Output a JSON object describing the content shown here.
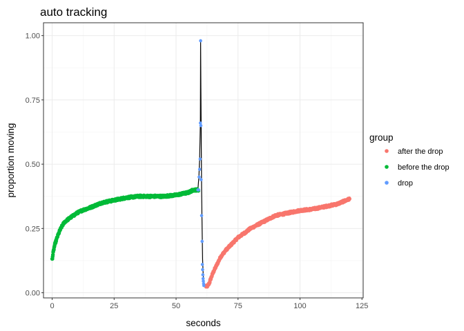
{
  "chart_data": {
    "type": "scatter",
    "title": "auto tracking",
    "xlabel": "seconds",
    "ylabel": "proportion moving",
    "xlim": [
      -3.5,
      125.5
    ],
    "ylim": [
      -0.02,
      1.05
    ],
    "x_ticks": [
      0,
      25,
      50,
      75,
      100,
      125
    ],
    "y_ticks": [
      0.0,
      0.25,
      0.5,
      0.75,
      1.0
    ],
    "x_tick_labels": [
      "0",
      "25",
      "50",
      "75",
      "100",
      "125"
    ],
    "y_tick_labels": [
      "0.00",
      "0.25",
      "0.50",
      "0.75",
      "1.00"
    ],
    "grid": true,
    "legend": {
      "title": "group",
      "position": "right"
    },
    "series": [
      {
        "name": "after the drop",
        "color": "#F8766D",
        "curve": "smooth",
        "x": [
          62.0,
          62.5,
          63,
          63.5,
          64,
          65,
          66,
          67,
          68,
          70,
          72,
          75,
          78,
          80,
          85,
          90,
          95,
          100,
          105,
          110,
          115,
          120
        ],
        "y": [
          0.025,
          0.025,
          0.03,
          0.04,
          0.055,
          0.08,
          0.1,
          0.12,
          0.14,
          0.165,
          0.185,
          0.215,
          0.235,
          0.25,
          0.275,
          0.3,
          0.31,
          0.32,
          0.325,
          0.335,
          0.345,
          0.365
        ]
      },
      {
        "name": "before the drop",
        "color": "#00BA38",
        "curve": "smooth",
        "x": [
          0,
          0.5,
          1,
          2,
          3,
          4,
          5,
          7,
          10,
          12,
          15,
          20,
          25,
          30,
          35,
          40,
          45,
          50,
          55,
          57,
          59
        ],
        "y": [
          0.13,
          0.16,
          0.185,
          0.215,
          0.24,
          0.26,
          0.275,
          0.29,
          0.31,
          0.32,
          0.33,
          0.35,
          0.36,
          0.37,
          0.375,
          0.375,
          0.375,
          0.38,
          0.39,
          0.4,
          0.4
        ]
      },
      {
        "name": "drop",
        "color": "#619CFF",
        "curve": "none",
        "x": [
          58.8,
          59.1,
          59.3,
          59.5,
          59.7,
          59.8,
          59.9,
          60.0,
          60.1,
          60.3,
          60.5,
          60.6,
          60.7,
          60.8,
          60.9,
          61.0,
          61.1,
          61.2
        ],
        "y": [
          0.4,
          0.4,
          0.45,
          0.48,
          0.52,
          0.66,
          0.98,
          0.65,
          0.44,
          0.3,
          0.2,
          0.11,
          0.09,
          0.07,
          0.055,
          0.045,
          0.035,
          0.028
        ]
      }
    ],
    "connector_line": {
      "color": "#000000",
      "x": [
        58.8,
        59.2,
        59.5,
        59.8,
        59.9,
        60.0,
        60.15,
        60.3,
        60.5,
        60.7,
        60.9,
        61.1,
        61.4,
        61.8,
        62.0
      ],
      "y": [
        0.4,
        0.45,
        0.52,
        0.66,
        0.98,
        0.81,
        0.6,
        0.4,
        0.25,
        0.13,
        0.08,
        0.05,
        0.035,
        0.028,
        0.025
      ]
    }
  }
}
